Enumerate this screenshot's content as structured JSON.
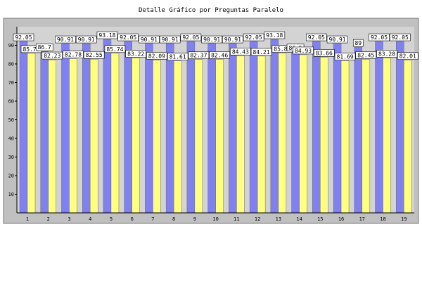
{
  "chart_data": {
    "type": "bar",
    "title": "Detalle Gráfico por Preguntas Paralelo",
    "xlabel": "",
    "ylabel": "",
    "ylim": [
      0,
      100
    ],
    "y_ticks": [
      10,
      20,
      30,
      40,
      50,
      60,
      70,
      80,
      90
    ],
    "grid": false,
    "legend": "none",
    "categories": [
      "1",
      "2",
      "3",
      "4",
      "5",
      "6",
      "7",
      "8",
      "9",
      "10",
      "11",
      "12",
      "13",
      "14",
      "15",
      "16",
      "17",
      "18",
      "19"
    ],
    "series": [
      {
        "color": "#8080f0",
        "values": [
          92.05,
          86.7,
          90.91,
          90.91,
          93.18,
          92.05,
          90.91,
          90.91,
          92.05,
          90.91,
          90.91,
          92.05,
          93.18,
          86.5,
          92.05,
          90.91,
          89.0,
          92.05,
          92.05
        ]
      },
      {
        "color": "#ffff80",
        "values": [
          85.7,
          82.23,
          82.78,
          82.55,
          85.74,
          83.22,
          82.09,
          81.61,
          82.37,
          82.46,
          84.43,
          84.21,
          85.84,
          84.93,
          83.66,
          81.69,
          82.45,
          83.28,
          82.01
        ]
      }
    ],
    "data_labels": [
      [
        "92.05",
        "85.70"
      ],
      [
        "86.7",
        "82.23"
      ],
      [
        "90.91",
        "82.78"
      ],
      [
        "90.91",
        "82.55"
      ],
      [
        "93.18",
        "85.74"
      ],
      [
        "92.05",
        "83.22"
      ],
      [
        "90.91",
        "82.09"
      ],
      [
        "90.91",
        "81.61"
      ],
      [
        "92.05",
        "82.37"
      ],
      [
        "90.91",
        "82.46"
      ],
      [
        "90.91",
        "84.43"
      ],
      [
        "92.05",
        "84.21"
      ],
      [
        "93.18",
        "85.84"
      ],
      [
        "86.5",
        "84.93"
      ],
      [
        "92.05",
        "83.66"
      ],
      [
        "90.91",
        "81.69"
      ],
      [
        "89",
        "82.45"
      ],
      [
        "92.05",
        "83.28"
      ],
      [
        "92.05",
        "82.01"
      ]
    ],
    "colors": {
      "outer_frame": "#c0c0c0",
      "plot_bg": "#d3d3d3",
      "axis": "#000000",
      "x_label_faded": "#bbbbbb"
    }
  }
}
